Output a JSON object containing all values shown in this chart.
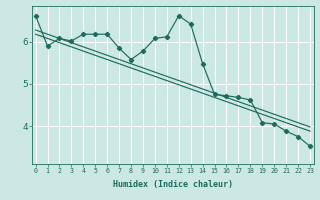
{
  "xlabel": "Humidex (Indice chaleur)",
  "ylabel": "",
  "bg_color": "#cce8e4",
  "grid_color": "#ffffff",
  "line_color": "#1e6b5e",
  "x_ticks": [
    0,
    1,
    2,
    3,
    4,
    5,
    6,
    7,
    8,
    9,
    10,
    11,
    12,
    13,
    14,
    15,
    16,
    17,
    18,
    19,
    20,
    21,
    22,
    23
  ],
  "y_ticks": [
    4,
    5,
    6
  ],
  "ylim": [
    3.1,
    6.85
  ],
  "xlim": [
    -0.3,
    23.3
  ],
  "series1_x": [
    0,
    1,
    2,
    3,
    4,
    5,
    6,
    7,
    8,
    9,
    10,
    11,
    12,
    13,
    14,
    15,
    16,
    17,
    18,
    19,
    20,
    21,
    22,
    23
  ],
  "series1_y": [
    6.62,
    5.9,
    6.08,
    6.02,
    6.18,
    6.18,
    6.18,
    5.85,
    5.58,
    5.78,
    6.08,
    6.12,
    6.62,
    6.42,
    5.48,
    4.75,
    4.72,
    4.68,
    4.62,
    4.08,
    4.05,
    3.88,
    3.75,
    3.52
  ],
  "series2_x": [
    0,
    1,
    2,
    3,
    4,
    5,
    6,
    7,
    8,
    9,
    10,
    11,
    12,
    13,
    14,
    15,
    16,
    17,
    18,
    19,
    20,
    21,
    22,
    23
  ],
  "series2_y": [
    6.28,
    6.18,
    6.08,
    5.98,
    5.88,
    5.78,
    5.68,
    5.58,
    5.48,
    5.38,
    5.28,
    5.18,
    5.08,
    4.98,
    4.88,
    4.78,
    4.68,
    4.58,
    4.48,
    4.38,
    4.28,
    4.18,
    4.08,
    3.98
  ],
  "series3_x": [
    0,
    1,
    2,
    3,
    4,
    5,
    6,
    7,
    8,
    9,
    10,
    11,
    12,
    13,
    14,
    15,
    16,
    17,
    18,
    19,
    20,
    21,
    22,
    23
  ],
  "series3_y": [
    6.18,
    6.08,
    5.98,
    5.88,
    5.78,
    5.68,
    5.58,
    5.48,
    5.38,
    5.28,
    5.18,
    5.08,
    4.98,
    4.88,
    4.78,
    4.68,
    4.58,
    4.48,
    4.38,
    4.28,
    4.18,
    4.08,
    3.98,
    3.88
  ]
}
